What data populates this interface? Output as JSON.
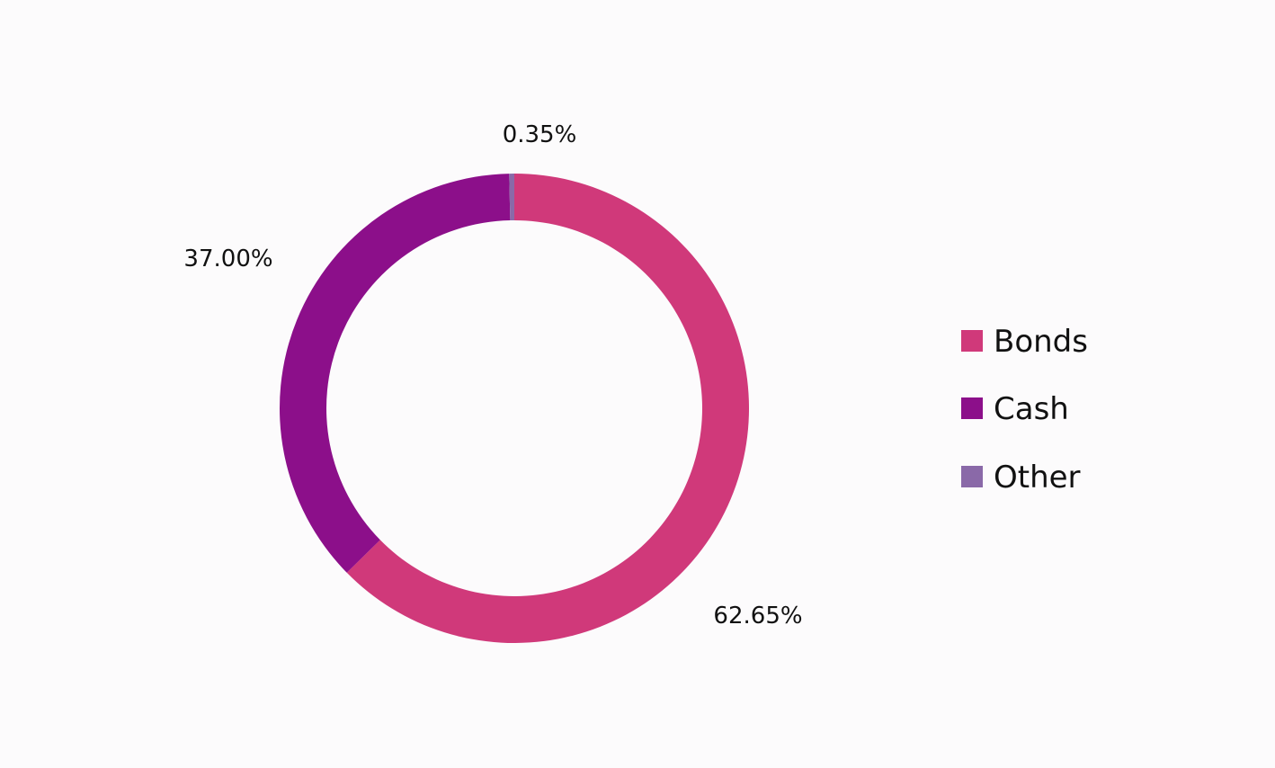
{
  "chart_data": {
    "type": "pie",
    "variant": "donut",
    "categories": [
      "Bonds",
      "Cash",
      "Other"
    ],
    "values": [
      62.65,
      37.0,
      0.35
    ],
    "data_labels": [
      "62.65%",
      "37.00%",
      "0.35%"
    ],
    "colors": [
      "#d0397a",
      "#8c0f8a",
      "#8a69a8"
    ],
    "legend": {
      "position": "right",
      "entries": [
        "Bonds",
        "Cash",
        "Other"
      ]
    },
    "title": ""
  }
}
